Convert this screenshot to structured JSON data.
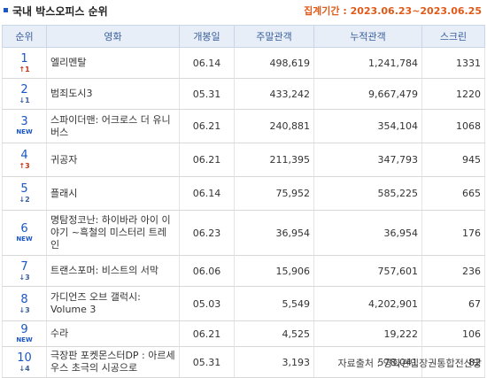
{
  "header": {
    "title": "국내 박스오피스 순위",
    "period": "집계기간 : 2023.06.23~2023.06.25"
  },
  "table": {
    "columns": [
      "순위",
      "영화",
      "개봉일",
      "주말관객",
      "누적관객",
      "스크린"
    ],
    "rows": [
      {
        "rank": "1",
        "change": "↑1",
        "change_type": "up",
        "title": "엘리멘탈",
        "release": "06.14",
        "weekend": "498,619",
        "total": "1,241,784",
        "screens": "1331"
      },
      {
        "rank": "2",
        "change": "↓1",
        "change_type": "down",
        "title": "범죄도시3",
        "release": "05.31",
        "weekend": "433,242",
        "total": "9,667,479",
        "screens": "1220"
      },
      {
        "rank": "3",
        "change": "NEW",
        "change_type": "new",
        "title": "스파이더맨: 어크로스 더 유니버스",
        "release": "06.21",
        "weekend": "240,881",
        "total": "354,104",
        "screens": "1068"
      },
      {
        "rank": "4",
        "change": "↑3",
        "change_type": "up",
        "title": "귀공자",
        "release": "06.21",
        "weekend": "211,395",
        "total": "347,793",
        "screens": "945"
      },
      {
        "rank": "5",
        "change": "↓2",
        "change_type": "down",
        "title": "플래시",
        "release": "06.14",
        "weekend": "75,952",
        "total": "585,225",
        "screens": "665"
      },
      {
        "rank": "6",
        "change": "NEW",
        "change_type": "new",
        "title": "명탐정코난: 하이바라 아이 이야기 ~흑철의 미스터리 트레인",
        "release": "06.23",
        "weekend": "36,954",
        "total": "36,954",
        "screens": "176"
      },
      {
        "rank": "7",
        "change": "↓3",
        "change_type": "down",
        "title": "트랜스포머: 비스트의 서막",
        "release": "06.06",
        "weekend": "15,906",
        "total": "757,601",
        "screens": "236"
      },
      {
        "rank": "8",
        "change": "↓3",
        "change_type": "down",
        "title": "가디언즈 오브 갤럭시: Volume 3",
        "release": "05.03",
        "weekend": "5,549",
        "total": "4,202,901",
        "screens": "67"
      },
      {
        "rank": "9",
        "change": "NEW",
        "change_type": "new",
        "title": "수라",
        "release": "06.21",
        "weekend": "4,525",
        "total": "19,222",
        "screens": "106"
      },
      {
        "rank": "10",
        "change": "↓4",
        "change_type": "down",
        "title": "극장판 포켓몬스터DP : 아르세우스 초극의 시공으로",
        "release": "05.31",
        "weekend": "3,193",
        "total": "578,041",
        "screens": "82"
      }
    ]
  },
  "footer": {
    "source": "자료출처 : 영화관입장권통합전산망"
  },
  "colors": {
    "accent": "#1a56c4",
    "period": "#e05a1a",
    "header_bg": "#e7eef8",
    "up": "#c4341a",
    "down": "#3a5f9a"
  }
}
